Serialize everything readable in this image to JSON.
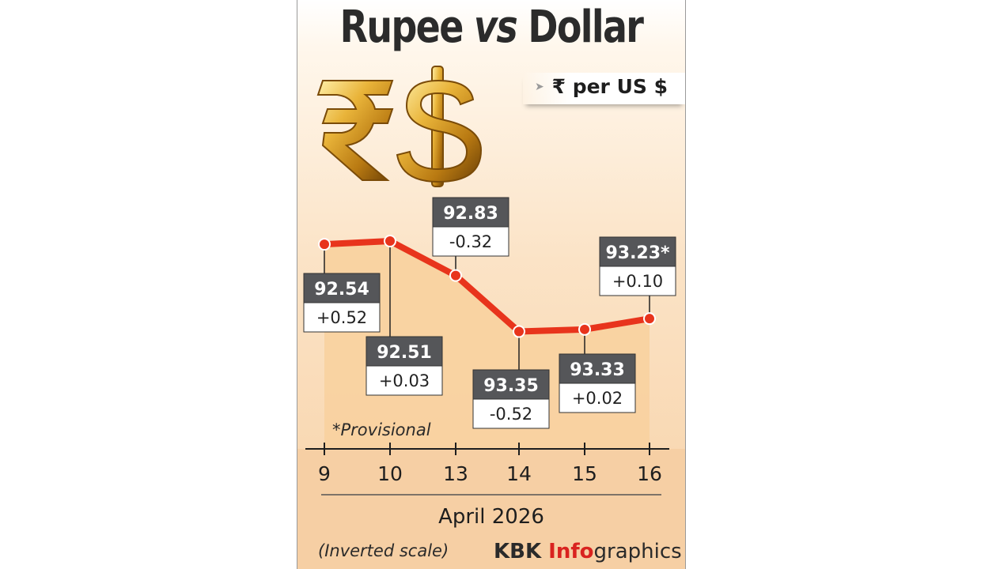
{
  "header": {
    "title_a": "Rupee ",
    "title_b": "vs",
    "title_c": " Dollar",
    "unit": "₹ per US $"
  },
  "colors": {
    "line": "#e8341c",
    "marker": "#e8341c",
    "area": "#f9d2a0",
    "label_dark": "#555659",
    "gold": "#d9a227"
  },
  "icons": [
    "rupee-symbol-icon",
    "dollar-symbol-icon"
  ],
  "chart_data": {
    "type": "line",
    "title": "Rupee vs Dollar",
    "ylabel": "₹ per US $",
    "xlabel": "April 2026",
    "scale": "inverted",
    "ylim": [
      92.4,
      93.5
    ],
    "categories": [
      "9",
      "10",
      "13",
      "14",
      "15",
      "16"
    ],
    "series": [
      {
        "values": [
          92.54,
          92.51,
          92.83,
          93.35,
          93.33,
          93.23
        ],
        "value_labels": [
          "92.54",
          "92.51",
          "92.83",
          "93.35",
          "93.33",
          "93.23*"
        ],
        "changes": [
          "+0.52",
          "+0.03",
          "-0.32",
          "-0.52",
          "+0.02",
          "+0.10"
        ]
      }
    ],
    "annotations": [
      "*Provisional",
      "(Inverted scale)"
    ]
  },
  "footer": {
    "credit_a": "KBK ",
    "credit_b": "Info",
    "credit_c": "graphics"
  }
}
